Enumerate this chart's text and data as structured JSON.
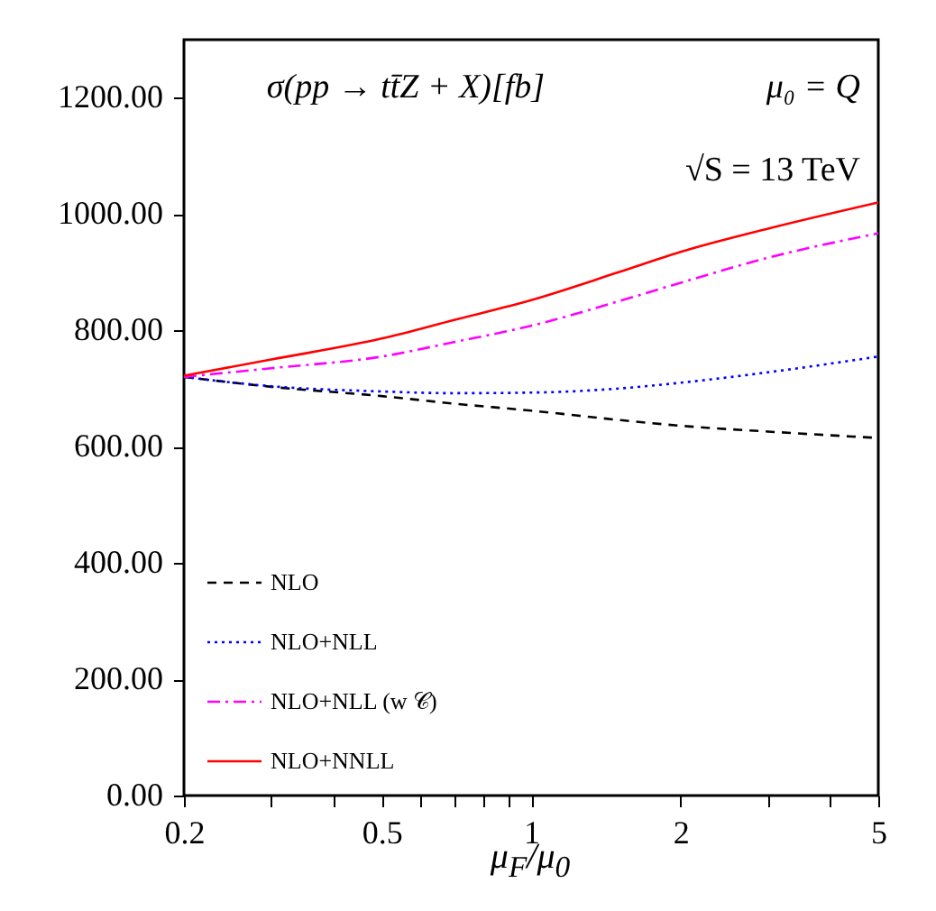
{
  "chart_data": {
    "type": "line",
    "xlabel": "μ$_{F}$/μ$_{0}$",
    "log": "x",
    "legend": "bottom left",
    "marker": "none",
    "annotations": [
      "σ(pp → tt̄Z + X)[fb]",
      "μ₀ = Q",
      "√S = 13 TeV"
    ],
    "x": [
      0.2,
      0.3,
      0.5,
      0.7,
      1,
      1.5,
      2,
      3,
      5
    ],
    "xlim": [
      0.2,
      5
    ],
    "xticks": [
      0.2,
      {
        "value": 0.3,
        "label": null
      },
      {
        "value": 0.4,
        "label": null
      },
      0.5,
      {
        "value": 0.6,
        "label": null
      },
      {
        "value": 0.7,
        "label": null
      },
      {
        "value": 0.8,
        "label": null
      },
      {
        "value": 0.9,
        "label": null
      },
      1,
      2,
      {
        "value": 3,
        "label": null
      },
      {
        "value": 4,
        "label": null
      },
      5
    ],
    "ylim": [
      0,
      1300
    ],
    "yticks": [
      {
        "value": 0,
        "label": "0.00"
      },
      {
        "value": 200,
        "label": "200.00"
      },
      {
        "value": 400,
        "label": "400.00"
      },
      {
        "value": 600,
        "label": "600.00"
      },
      {
        "value": 800,
        "label": "800.00"
      },
      {
        "value": 1000,
        "label": "1000.00"
      },
      {
        "value": 1200,
        "label": "1200.00"
      }
    ],
    "series": [
      {
        "name": "NLO",
        "color": "#000000",
        "line_style": "dashed",
        "values": [
          720,
          703,
          687,
          674,
          662,
          646,
          636,
          626,
          615
        ]
      },
      {
        "name": "NLO+NLL",
        "color": "#0000ff",
        "line_style": "dotted",
        "values": [
          720,
          704,
          695,
          692,
          693,
          700,
          710,
          728,
          755
        ]
      },
      {
        "name": "NLO+NLL (w 𝒞)",
        "color": "#ff00ff",
        "line_style": "dashdot",
        "values": [
          720,
          735,
          755,
          780,
          808,
          850,
          882,
          925,
          967
        ]
      },
      {
        "name": "NLO+NNLL",
        "color": "#ff0000",
        "line_style": "solid",
        "values": [
          722,
          750,
          786,
          818,
          852,
          900,
          935,
          975,
          1020
        ]
      }
    ]
  }
}
